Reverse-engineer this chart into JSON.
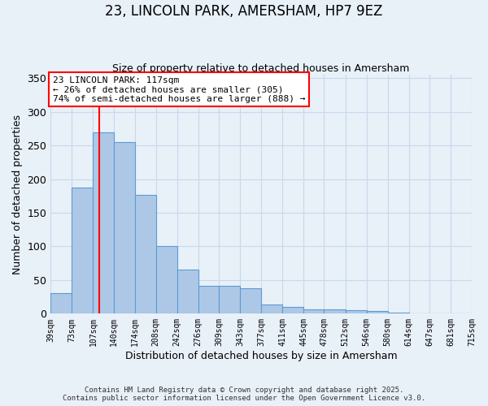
{
  "title": "23, LINCOLN PARK, AMERSHAM, HP7 9EZ",
  "subtitle": "Size of property relative to detached houses in Amersham",
  "xlabel": "Distribution of detached houses by size in Amersham",
  "ylabel": "Number of detached properties",
  "bar_edges": [
    39,
    73,
    107,
    140,
    174,
    208,
    242,
    276,
    309,
    343,
    377,
    411,
    445,
    478,
    512,
    546,
    580,
    614,
    647,
    681,
    715
  ],
  "bar_heights": [
    30,
    188,
    270,
    255,
    176,
    100,
    65,
    42,
    42,
    38,
    14,
    10,
    6,
    6,
    5,
    4,
    2,
    1,
    1,
    1
  ],
  "bar_color": "#adc8e6",
  "bar_edge_color": "#5b9bd5",
  "property_line_x": 117,
  "property_line_color": "red",
  "ylim": [
    0,
    355
  ],
  "yticks": [
    0,
    50,
    100,
    150,
    200,
    250,
    300,
    350
  ],
  "xtick_labels": [
    "39sqm",
    "73sqm",
    "107sqm",
    "140sqm",
    "174sqm",
    "208sqm",
    "242sqm",
    "276sqm",
    "309sqm",
    "343sqm",
    "377sqm",
    "411sqm",
    "445sqm",
    "478sqm",
    "512sqm",
    "546sqm",
    "580sqm",
    "614sqm",
    "647sqm",
    "681sqm",
    "715sqm"
  ],
  "annotation_title": "23 LINCOLN PARK: 117sqm",
  "annotation_line1": "← 26% of detached houses are smaller (305)",
  "annotation_line2": "74% of semi-detached houses are larger (888) →",
  "annotation_box_color": "white",
  "annotation_box_edge_color": "red",
  "grid_color": "#c8d8ec",
  "background_color": "#e8f0f8",
  "footer1": "Contains HM Land Registry data © Crown copyright and database right 2025.",
  "footer2": "Contains public sector information licensed under the Open Government Licence v3.0."
}
